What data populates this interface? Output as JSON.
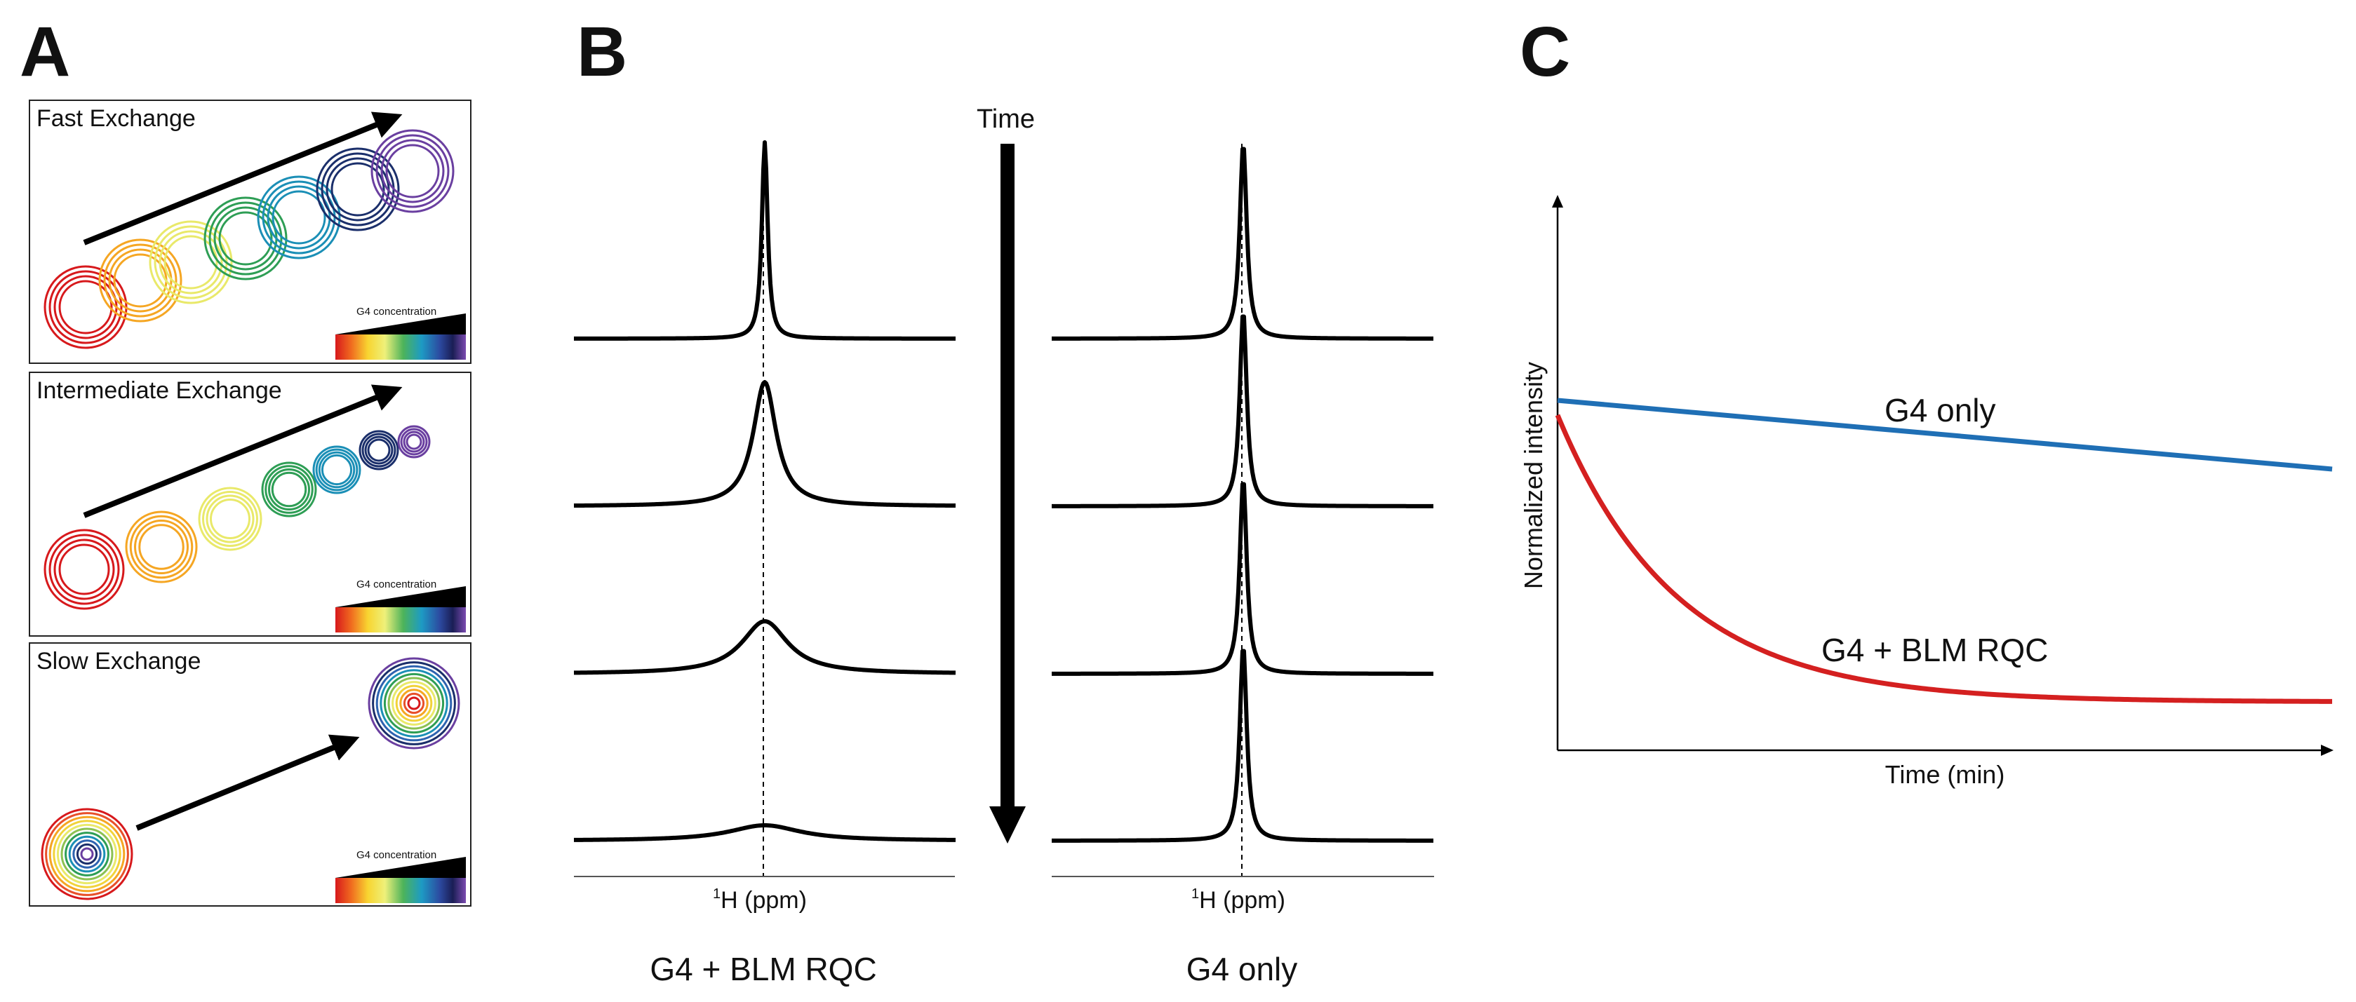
{
  "panels": {
    "a": {
      "label": "A",
      "boxes": [
        {
          "title": "Fast Exchange",
          "legend": "G4 concentration"
        },
        {
          "title": "Intermediate Exchange",
          "legend": "G4 concentration"
        },
        {
          "title": "Slow Exchange",
          "legend": "G4 concentration"
        }
      ]
    },
    "b": {
      "label": "B",
      "time_label": "Time",
      "left_axis": {
        "sup": "1",
        "text": "H (ppm)"
      },
      "right_axis": {
        "sup": "1",
        "text": "H (ppm)"
      },
      "left_title": "G4 + BLM RQC",
      "right_title": "G4 only"
    },
    "c": {
      "label": "C",
      "xlabel": "Time (min)",
      "ylabel": "Normalized intensity",
      "series": [
        {
          "name": "G4 only",
          "color": "#1f6fb5"
        },
        {
          "name": "G4 + BLM RQC",
          "color": "#d42020"
        }
      ]
    }
  },
  "colors": {
    "rainbow": [
      "#d7191c",
      "#e8502a",
      "#f5a623",
      "#f1d33a",
      "#e9e96a",
      "#8cc152",
      "#2e9e55",
      "#1b8fb6",
      "#2e63b0",
      "#1b2f6b",
      "#6a3fa0"
    ]
  }
}
